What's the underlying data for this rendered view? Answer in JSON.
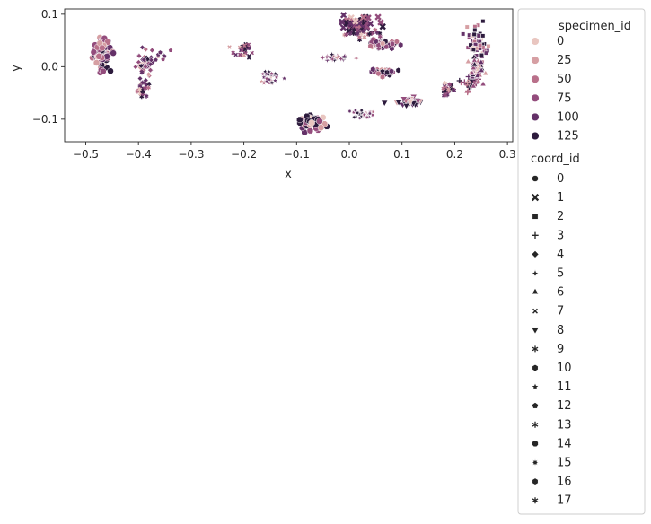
{
  "chart_data": {
    "type": "scatter",
    "title": "",
    "xlabel": "x",
    "ylabel": "y",
    "xlim": [
      -0.54,
      0.31
    ],
    "ylim": [
      -0.143,
      0.11
    ],
    "xticks": [
      -0.5,
      -0.4,
      -0.3,
      -0.2,
      -0.1,
      0.0,
      0.1,
      0.2,
      0.3
    ],
    "xtick_labels": [
      "−0.5",
      "−0.4",
      "−0.3",
      "−0.2",
      "−0.1",
      "0.0",
      "0.1",
      "0.2",
      "0.3"
    ],
    "yticks": [
      -0.1,
      0.0,
      0.1
    ],
    "ytick_labels": [
      "−0.1",
      "0.0",
      "0.1"
    ],
    "grid": false,
    "legend_placement": "outside right",
    "hue_legend": {
      "title": "specimen_id",
      "entries": [
        {
          "label": "0",
          "color": "#e9c6c0"
        },
        {
          "label": "25",
          "color": "#d69fa3"
        },
        {
          "label": "50",
          "color": "#b9708a"
        },
        {
          "label": "75",
          "color": "#934c7c"
        },
        {
          "label": "100",
          "color": "#643168"
        },
        {
          "label": "125",
          "color": "#2d1b3d"
        }
      ]
    },
    "style_legend": {
      "title": "coord_id",
      "entries": [
        {
          "label": "0",
          "marker": "circle"
        },
        {
          "label": "1",
          "marker": "x"
        },
        {
          "label": "2",
          "marker": "square"
        },
        {
          "label": "3",
          "marker": "plus"
        },
        {
          "label": "4",
          "marker": "diamond"
        },
        {
          "label": "5",
          "marker": "star4"
        },
        {
          "label": "6",
          "marker": "triangle-up"
        },
        {
          "label": "7",
          "marker": "x-small"
        },
        {
          "label": "8",
          "marker": "triangle-down"
        },
        {
          "label": "9",
          "marker": "asterisk"
        },
        {
          "label": "10",
          "marker": "hexagon"
        },
        {
          "label": "11",
          "marker": "star"
        },
        {
          "label": "12",
          "marker": "pentagon"
        },
        {
          "label": "13",
          "marker": "asterisk"
        },
        {
          "label": "14",
          "marker": "octagon"
        },
        {
          "label": "15",
          "marker": "star8"
        },
        {
          "label": "16",
          "marker": "hexagon"
        },
        {
          "label": "17",
          "marker": "asterisk"
        }
      ]
    },
    "clusters": [
      {
        "coord_id": "0",
        "marker": "circle",
        "cx": -0.47,
        "cy": 0.025,
        "sx": 0.014,
        "sy": 0.025,
        "n": 80,
        "size": 7
      },
      {
        "coord_id": "1",
        "marker": "x",
        "cx": 0.015,
        "cy": 0.083,
        "sx": 0.028,
        "sy": 0.01,
        "n": 60,
        "size": 6
      },
      {
        "coord_id": "2",
        "marker": "square",
        "cx": 0.245,
        "cy": 0.045,
        "sx": 0.014,
        "sy": 0.025,
        "n": 60,
        "size": 5
      },
      {
        "coord_id": "3",
        "marker": "plus",
        "cx": 0.228,
        "cy": -0.03,
        "sx": 0.016,
        "sy": 0.012,
        "n": 30,
        "size": 6
      },
      {
        "coord_id": "4",
        "marker": "diamond",
        "cx": -0.39,
        "cy": 0.0,
        "sx": 0.012,
        "sy": 0.032,
        "n": 50,
        "size": 5
      },
      {
        "coord_id": "5",
        "marker": "star4",
        "cx": -0.03,
        "cy": 0.017,
        "sx": 0.022,
        "sy": 0.005,
        "n": 30,
        "size": 6
      },
      {
        "coord_id": "6",
        "marker": "triangle-up",
        "cx": 0.24,
        "cy": -0.005,
        "sx": 0.013,
        "sy": 0.018,
        "n": 50,
        "size": 6
      },
      {
        "coord_id": "7",
        "marker": "x-small",
        "cx": -0.2,
        "cy": 0.03,
        "sx": 0.016,
        "sy": 0.012,
        "n": 30,
        "size": 5
      },
      {
        "coord_id": "8",
        "marker": "triangle-down",
        "cx": 0.115,
        "cy": -0.065,
        "sx": 0.02,
        "sy": 0.006,
        "n": 40,
        "size": 7
      },
      {
        "coord_id": "9",
        "marker": "asterisk",
        "cx": -0.395,
        "cy": -0.045,
        "sx": 0.01,
        "sy": 0.018,
        "n": 25,
        "size": 5
      },
      {
        "coord_id": "10",
        "marker": "hexagon",
        "cx": 0.06,
        "cy": 0.042,
        "sx": 0.03,
        "sy": 0.006,
        "n": 45,
        "size": 6
      },
      {
        "coord_id": "11",
        "marker": "star",
        "cx": -0.15,
        "cy": -0.02,
        "sx": 0.016,
        "sy": 0.014,
        "n": 30,
        "size": 5
      },
      {
        "coord_id": "12",
        "marker": "pentagon",
        "cx": -0.355,
        "cy": 0.02,
        "sx": 0.015,
        "sy": 0.01,
        "n": 8,
        "size": 5
      },
      {
        "coord_id": "13",
        "marker": "asterisk",
        "cx": 0.02,
        "cy": 0.065,
        "sx": 0.03,
        "sy": 0.008,
        "n": 30,
        "size": 5
      },
      {
        "coord_id": "14",
        "marker": "octagon",
        "cx": -0.07,
        "cy": -0.105,
        "sx": 0.022,
        "sy": 0.01,
        "n": 60,
        "size": 7
      },
      {
        "coord_id": "15",
        "marker": "star8",
        "cx": 0.025,
        "cy": -0.09,
        "sx": 0.018,
        "sy": 0.007,
        "n": 30,
        "size": 5
      },
      {
        "coord_id": "16",
        "marker": "hexagon",
        "cx": 0.065,
        "cy": -0.01,
        "sx": 0.022,
        "sy": 0.005,
        "n": 40,
        "size": 6
      },
      {
        "coord_id": "17",
        "marker": "asterisk",
        "cx": 0.185,
        "cy": -0.045,
        "sx": 0.01,
        "sy": 0.01,
        "n": 20,
        "size": 5
      }
    ]
  }
}
